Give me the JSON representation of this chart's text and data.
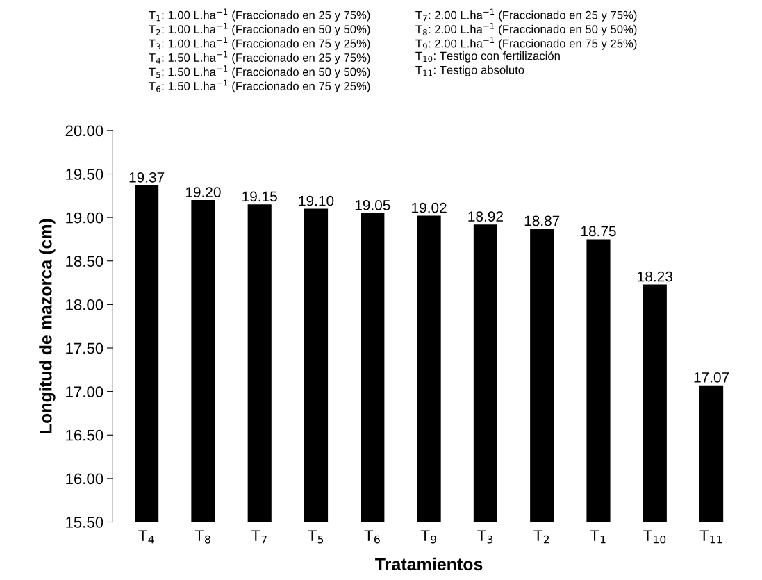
{
  "chart_data": {
    "type": "bar",
    "xlabel": "Tratamientos",
    "ylabel": "Longitud de mazorca (cm)",
    "categories": [
      "T$_{4}$",
      "T$_{8}$",
      "T$_{7}$",
      "T$_{5}$",
      "T$_{6}$",
      "T$_{9}$",
      "T$_{3}$",
      "T$_{2}$",
      "T$_{1}$",
      "T$_{10}$",
      "T$_{11}$"
    ],
    "values": [
      19.37,
      19.2,
      19.15,
      19.1,
      19.05,
      19.02,
      18.92,
      18.87,
      18.75,
      18.23,
      17.07
    ],
    "value_labels": [
      "19.37",
      "19.20",
      "19.15",
      "19.10",
      "19.05",
      "19.02",
      "18.92",
      "18.87",
      "18.75",
      "18.23",
      "17.07"
    ],
    "color": "#000000",
    "ylim": [
      15.5,
      20.0
    ],
    "yticks": [
      {
        "value": 15.5,
        "label": "15.50"
      },
      {
        "value": 16.0,
        "label": "16.00"
      },
      {
        "value": 16.5,
        "label": "16.50"
      },
      {
        "value": 17.0,
        "label": "17.00"
      },
      {
        "value": 17.5,
        "label": "17.50"
      },
      {
        "value": 18.0,
        "label": "18.00"
      },
      {
        "value": 18.5,
        "label": "18.50"
      },
      {
        "value": 19.0,
        "label": "19.00"
      },
      {
        "value": 19.5,
        "label": "19.50"
      },
      {
        "value": 20.0,
        "label": "20.00"
      }
    ],
    "grid": false,
    "legend": false,
    "annotations": [
      "T$_{1}$: 1.00 L.ha$^{−1}$ (Fraccionado en 25 y 75%)",
      "T$_{2}$: 1.00 L.ha$^{−1}$ (Fraccionado en 50 y 50%)",
      "T$_{3}$: 1.00 L.ha$^{−1}$ (Fraccionado en 75 y 25%)",
      "T$_{4}$: 1.50 L.ha$^{−1}$ (Fraccionado en 25 y 75%)",
      "T$_{5}$: 1.50 L.ha$^{−1}$ (Fraccionado en 50 y 50%)",
      "T$_{6}$: 1.50 L.ha$^{−1}$ (Fraccionado en 75 y 25%)",
      "T$_{7}$: 2.00 L.ha$^{−1}$ (Fraccionado en 25 y 75%)",
      "T$_{8}$: 2.00 L.ha$^{−1}$ (Fraccionado en 50 y 50%)",
      "T$_{9}$: 2.00 L.ha$^{−1}$ (Fraccionado en 75 y 25%)",
      "T$_{10}$: Testigo con fertilización",
      "T$_{11}$: Testigo absoluto"
    ]
  }
}
